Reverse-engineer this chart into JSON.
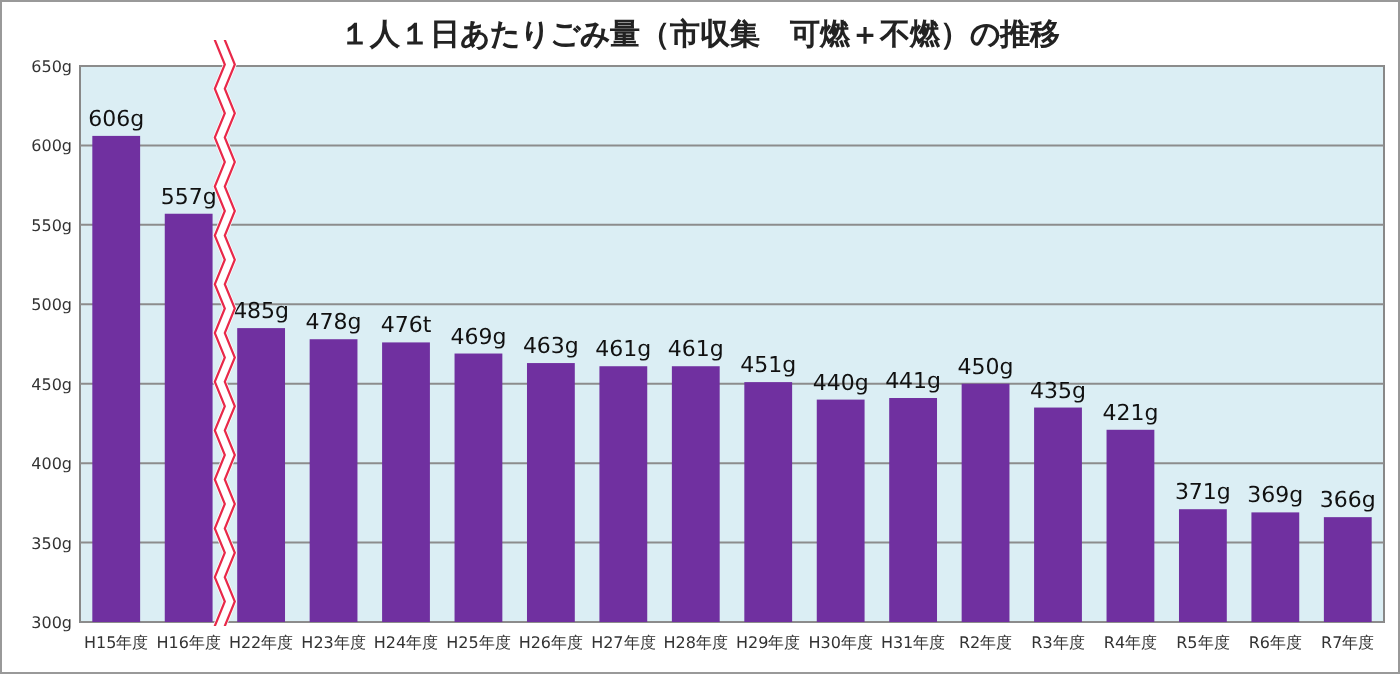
{
  "chart_data": {
    "type": "bar",
    "title": "１人１日あたりごみ量（市収集　可燃＋不燃）の推移",
    "categories": [
      "H15年度",
      "H16年度",
      "H22年度",
      "H23年度",
      "H24年度",
      "H25年度",
      "H26年度",
      "H27年度",
      "H28年度",
      "H29年度",
      "H30年度",
      "H31年度",
      "R2年度",
      "R3年度",
      "R4年度",
      "R5年度",
      "R6年度",
      "R7年度"
    ],
    "values": [
      606,
      557,
      485,
      478,
      476,
      469,
      463,
      461,
      461,
      451,
      440,
      441,
      450,
      435,
      421,
      371,
      369,
      366
    ],
    "value_labels": [
      "606g",
      "557g",
      "485g",
      "478g",
      "476t",
      "469g",
      "463g",
      "461g",
      "461g",
      "451g",
      "440g",
      "441g",
      "450g",
      "435g",
      "421g",
      "371g",
      "369g",
      "366g"
    ],
    "color": "#7030a0",
    "ylim": [
      300,
      650
    ],
    "yticks": [
      {
        "value": 300,
        "label": "300g"
      },
      {
        "value": 350,
        "label": "350g"
      },
      {
        "value": 400,
        "label": "400g"
      },
      {
        "value": 450,
        "label": "450g"
      },
      {
        "value": 500,
        "label": "500g"
      },
      {
        "value": 550,
        "label": "550g"
      },
      {
        "value": 600,
        "label": "600g"
      },
      {
        "value": 650,
        "label": "650g"
      }
    ],
    "grid": "y"
  }
}
